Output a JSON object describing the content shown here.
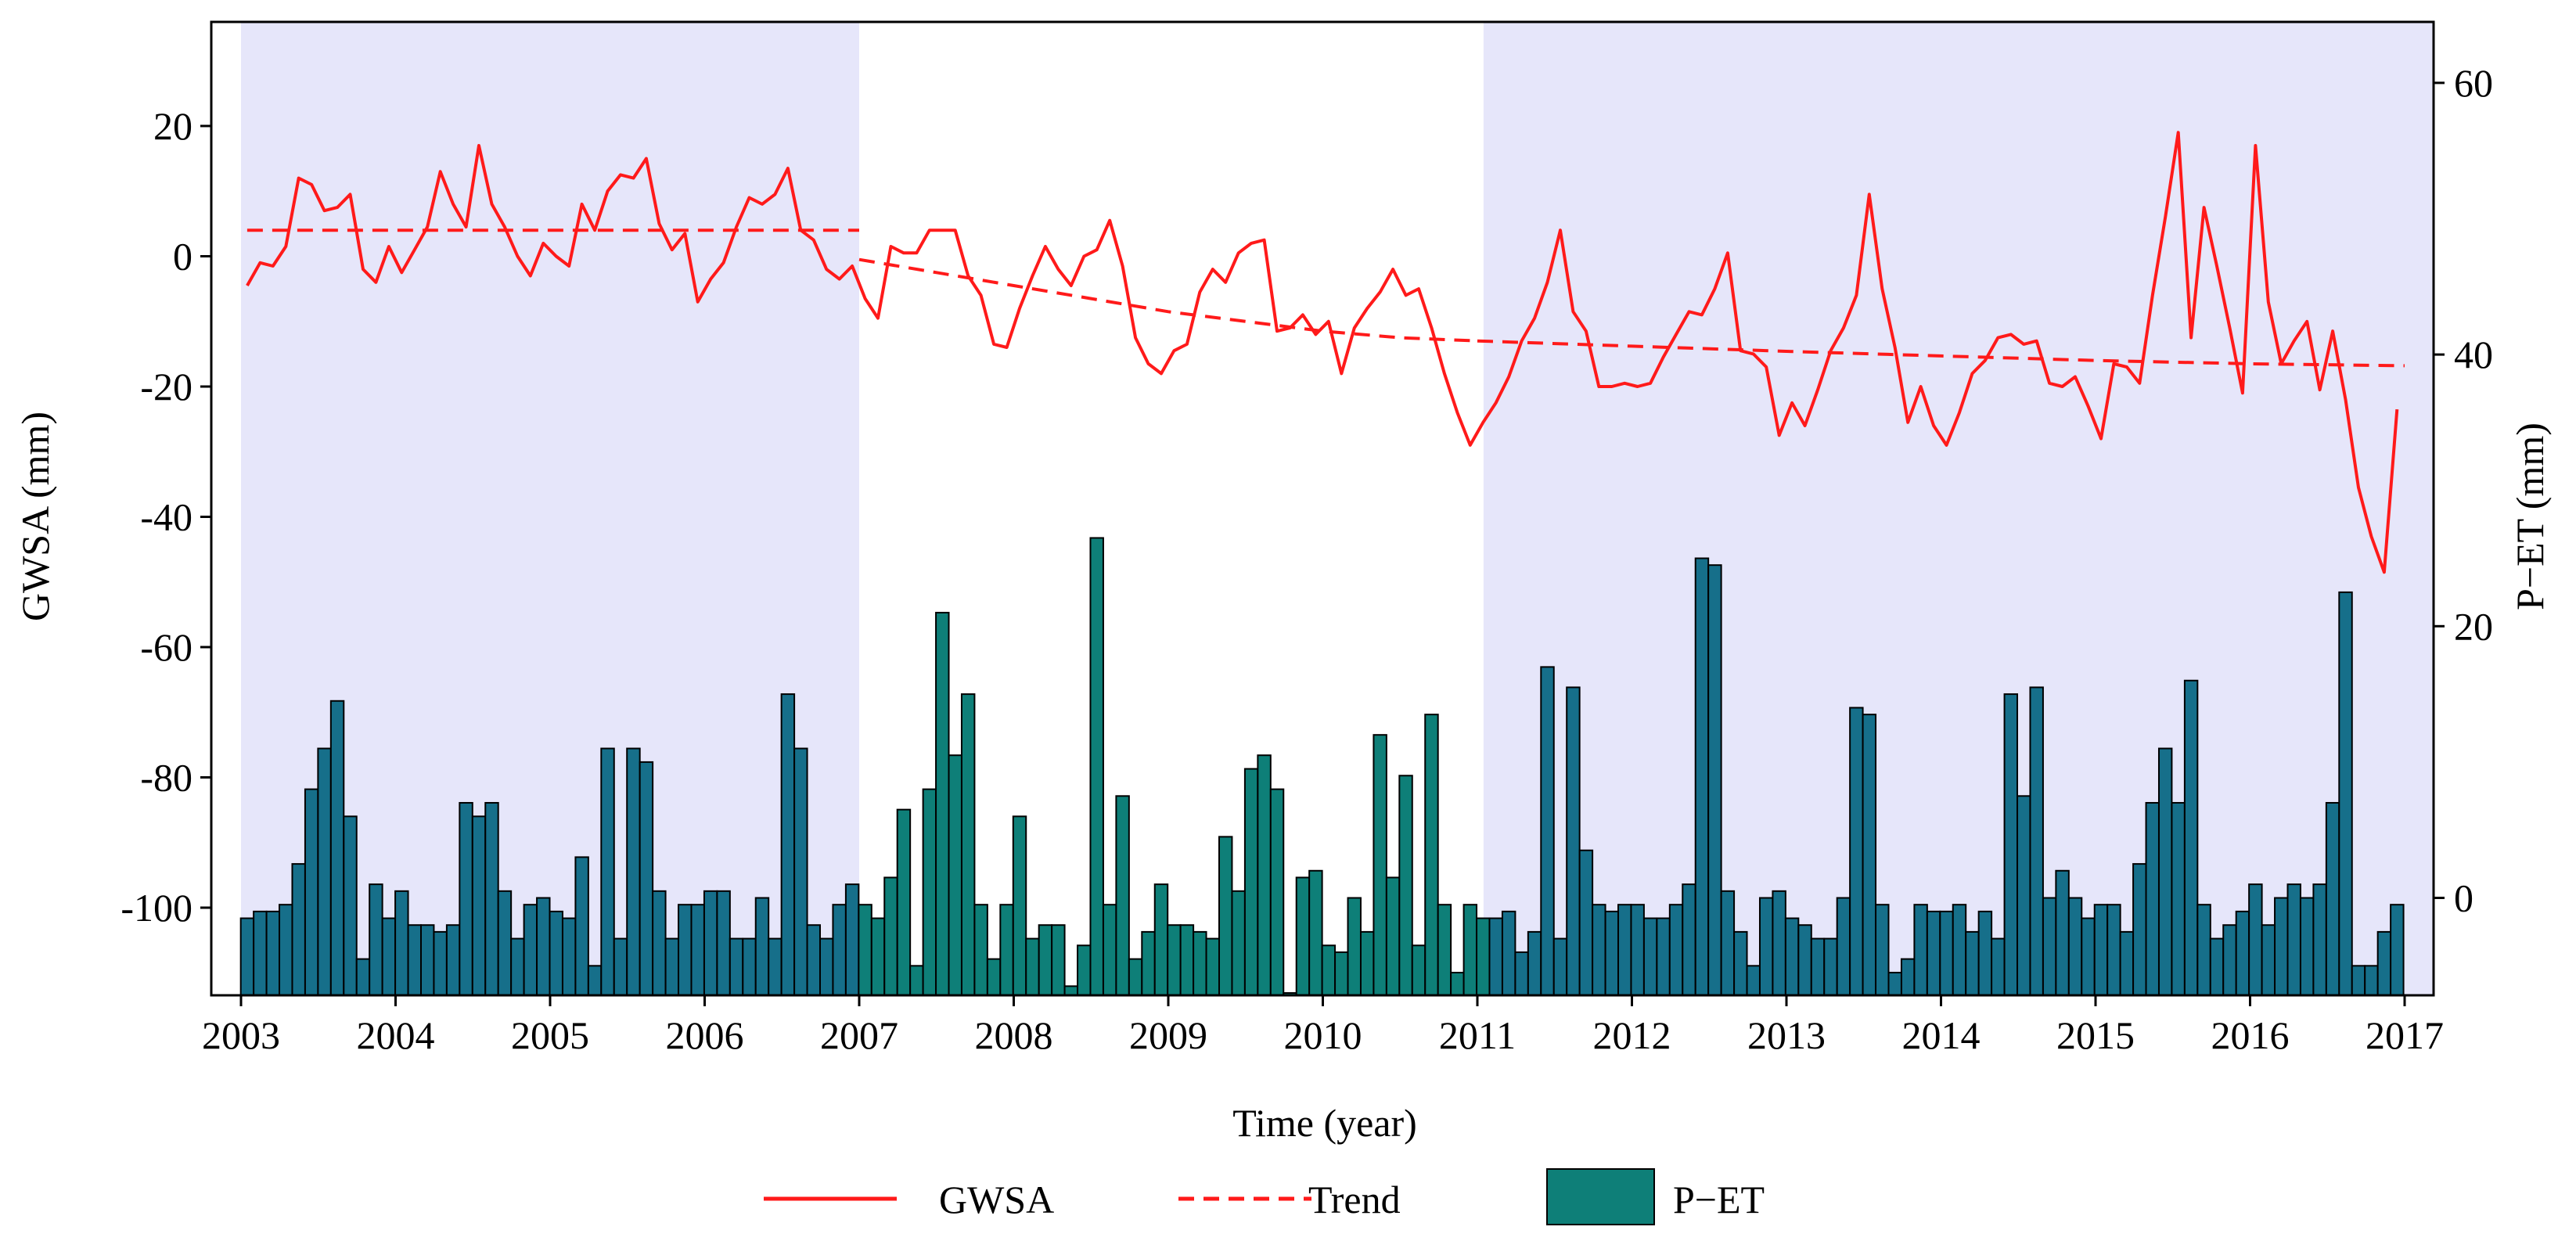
{
  "chart_data": {
    "type": "bar+line",
    "xlabel": "Time (year)",
    "ylabel_left": "GWSA (mm)",
    "ylabel_right": "P−ET (mm)",
    "xlim": [
      2003,
      2017
    ],
    "ylim_left": [
      -115,
      35
    ],
    "ylim_right": [
      -7,
      65
    ],
    "x_ticks": [
      2003,
      2004,
      2005,
      2006,
      2007,
      2008,
      2009,
      2010,
      2011,
      2012,
      2013,
      2014,
      2015,
      2016,
      2017
    ],
    "y_ticks_left": [
      20,
      0,
      -20,
      -40,
      -60,
      -80,
      -100
    ],
    "y_ticks_right": [
      60,
      40,
      20,
      0
    ],
    "shaded_periods": [
      [
        2003,
        2007
      ],
      [
        2011.04,
        2017.2
      ]
    ],
    "shade_color": "#e6e6fa",
    "legend": {
      "position": "bottom-center",
      "entries": [
        "GWSA",
        "Trend",
        "P−ET"
      ]
    },
    "series": [
      {
        "name": "GWSA",
        "kind": "line",
        "axis": "left",
        "color": "#ff1a1a",
        "start": 2003.04,
        "step": 0.0833,
        "values": [
          -4.5,
          -1,
          -1.5,
          1.5,
          12,
          11,
          7,
          7.5,
          9.5,
          -2,
          -4,
          1.5,
          -2.5,
          1,
          4.5,
          13,
          8,
          4.5,
          17,
          8,
          4.5,
          0,
          -3,
          2,
          0,
          -1.5,
          8,
          4,
          10,
          12.5,
          12,
          15,
          5,
          1,
          3.5,
          -7,
          -3.5,
          -1,
          4.5,
          9,
          8,
          9.5,
          13.5,
          4,
          2.5,
          -2,
          -3.5,
          -1.5,
          -6.5,
          -9.5,
          1.5,
          0.5,
          0.5,
          4,
          4,
          4,
          -3,
          -6,
          -13.5,
          -14,
          -8,
          -3,
          1.5,
          -2,
          -4.5,
          0,
          1,
          5.5,
          -1.5,
          -12.5,
          -16.5,
          -18,
          -14.5,
          -13.5,
          -5.5,
          -2,
          -4,
          0.5,
          2,
          2.5,
          -11.5,
          -11,
          -9,
          -12,
          -10,
          -18,
          -11,
          -8,
          -5.5,
          -2,
          -6,
          -5,
          -11,
          -18,
          -24,
          -29,
          -25.5,
          -22.5,
          -18.5,
          -13,
          -9.5,
          -4,
          4,
          -8.5,
          -11.5,
          -20,
          -20,
          -19.5,
          -20,
          -19.5,
          -15.5,
          -12,
          -8.5,
          -9,
          -5,
          0.5,
          -14.5,
          -15,
          -17,
          -27.5,
          -22.5,
          -26,
          -20.5,
          -14.5,
          -11,
          -6,
          9.5,
          -5,
          -14,
          -25.5,
          -20,
          -26,
          -29,
          -24,
          -18,
          -16,
          -12.5,
          -12,
          -13.5,
          -13,
          -19.5,
          -20,
          -18.5,
          -23,
          -28,
          -16.5,
          -17,
          -19.5,
          -6,
          6,
          19,
          -12.5,
          7.5,
          -1.5,
          -11,
          -21,
          17,
          -7,
          -16.5,
          -13,
          -10,
          -20.5,
          -11.5,
          -22,
          -35.5,
          -43,
          -48.5,
          -23.5
        ]
      },
      {
        "name": "Trend",
        "kind": "dashed-line",
        "axis": "left",
        "color": "#ff1a1a",
        "segments": [
          {
            "x": [
              2003.04,
              2007.0
            ],
            "y": [
              4,
              4
            ]
          },
          {
            "x": [
              2007.0,
              2007.5,
              2008.0,
              2008.5,
              2009.0,
              2009.5,
              2010.0,
              2010.5,
              2011.0
            ],
            "y": [
              -0.5,
              -2.5,
              -4.5,
              -6.5,
              -8.5,
              -10,
              -11.5,
              -12.5,
              -13
            ]
          },
          {
            "x": [
              2011.0,
              2012.0,
              2013.0,
              2014.0,
              2015.0,
              2016.0,
              2017.0
            ],
            "y": [
              -13,
              -13.8,
              -14.6,
              -15.3,
              -16,
              -16.5,
              -16.8
            ]
          }
        ]
      },
      {
        "name": "P−ET",
        "kind": "bar",
        "axis": "right",
        "colors": {
          "shaded": "#166f8a",
          "unshaded": "#0e7f78"
        },
        "start": 2003.04,
        "step": 0.0833,
        "values": [
          -1.5,
          -1,
          -1,
          -0.5,
          2.5,
          8,
          11,
          14.5,
          6,
          -4.5,
          1,
          -1.5,
          0.5,
          -2,
          -2,
          -2.5,
          -2,
          7,
          6,
          7,
          0.5,
          -3,
          -0.5,
          0,
          -1,
          -1.5,
          3,
          -5,
          11,
          -3,
          11,
          10,
          0.5,
          -3,
          -0.5,
          -0.5,
          0.5,
          0.5,
          -3,
          -3,
          0,
          -3,
          15,
          11,
          -2,
          -3,
          -0.5,
          1,
          -0.5,
          -1.5,
          1.5,
          6.5,
          -5,
          8,
          21,
          10.5,
          15,
          -0.5,
          -4.5,
          -0.5,
          6,
          -3,
          -2,
          -2,
          -6.5,
          -3.5,
          26.5,
          -0.5,
          7.5,
          -4.5,
          -2.5,
          1,
          -2,
          -2,
          -2.5,
          -3,
          4.5,
          0.5,
          9.5,
          10.5,
          8,
          -7,
          1.5,
          2,
          -3.5,
          -4,
          0,
          -2.5,
          12,
          1.5,
          9,
          -3.5,
          13.5,
          -0.5,
          -5.5,
          -0.5,
          -1.5,
          -1.5,
          -1,
          -4,
          -2.5,
          17,
          -3,
          15.5,
          3.5,
          -0.5,
          -1,
          -0.5,
          -0.5,
          -1.5,
          -1.5,
          -0.5,
          1,
          25,
          24.5,
          0.5,
          -2.5,
          -5,
          0,
          0.5,
          -1.5,
          -2,
          -3,
          -3,
          0,
          14,
          13.5,
          -0.5,
          -5.5,
          -4.5,
          -0.5,
          -1,
          -1,
          -0.5,
          -2.5,
          -1,
          -3,
          15,
          7.5,
          15.5,
          0,
          2,
          0,
          -1.5,
          -0.5,
          -0.5,
          -2.5,
          2.5,
          7,
          11,
          7,
          16,
          -0.5,
          -3,
          -2,
          -1,
          1,
          -2,
          0,
          1,
          0,
          1,
          7,
          22.5,
          -5,
          -5,
          -2.5,
          -0.5
        ]
      }
    ]
  }
}
